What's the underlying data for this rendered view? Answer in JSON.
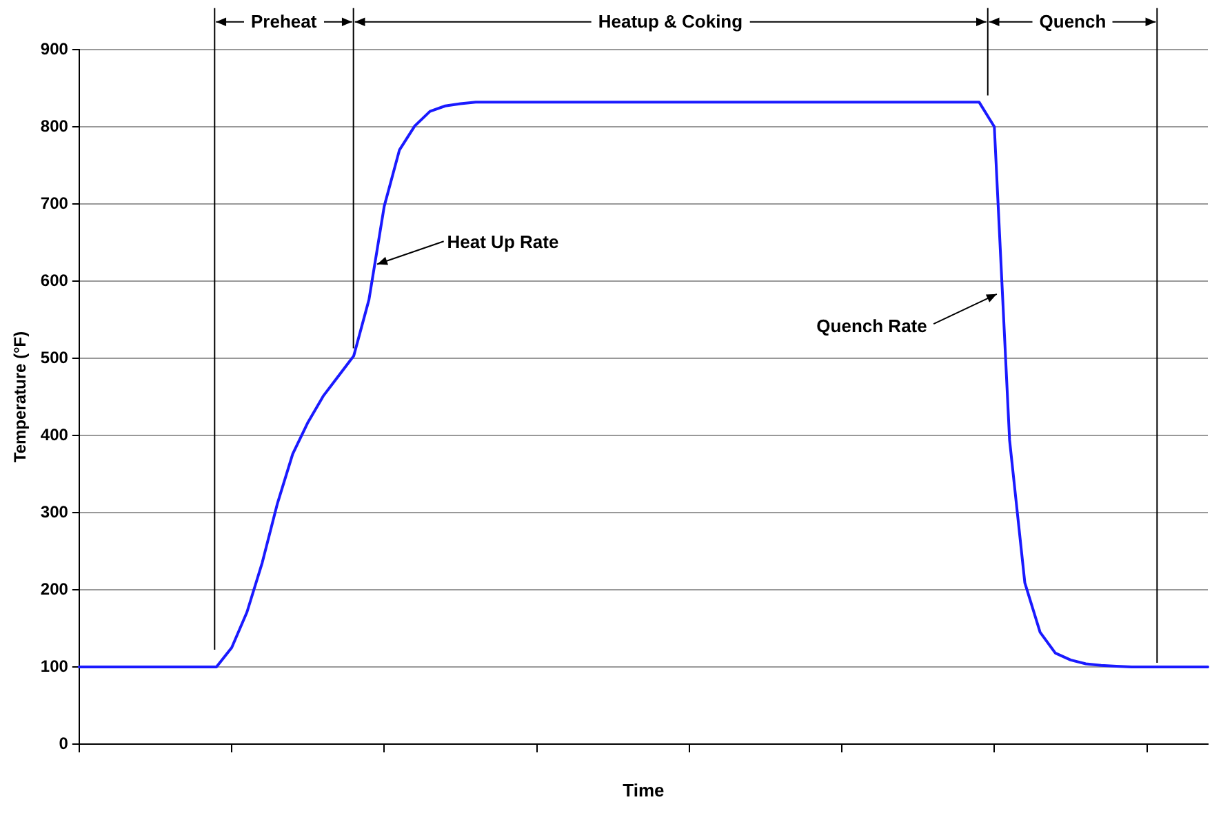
{
  "chart_data": {
    "type": "line",
    "xlabel": "Time",
    "ylabel": "Temperature (°F)",
    "categories": [
      null,
      null,
      null,
      null,
      null,
      null,
      null,
      null,
      null,
      null,
      null,
      null,
      null,
      null,
      null,
      null,
      null,
      null,
      null,
      null,
      null,
      null,
      null,
      null,
      null,
      null,
      null,
      null,
      null,
      null,
      null,
      null,
      null,
      null,
      null,
      null,
      null,
      null,
      null,
      null,
      null,
      null,
      null,
      null,
      null,
      null,
      null,
      null,
      null,
      null,
      null,
      null,
      null,
      null,
      null,
      null,
      null,
      null,
      null,
      null,
      null,
      null,
      null,
      null,
      null,
      null,
      null,
      null,
      null,
      null,
      null,
      null,
      null,
      null,
      null
    ],
    "series": [
      {
        "color": "#1a1aff",
        "values": [
          100,
          100,
          100,
          100,
          100,
          100,
          100,
          100,
          100,
          100,
          125,
          171,
          235,
          312,
          376,
          417,
          451,
          477,
          503,
          576,
          697,
          770,
          801,
          820,
          827,
          830,
          832,
          832,
          832,
          832,
          832,
          832,
          832,
          832,
          832,
          832,
          832,
          832,
          832,
          832,
          832,
          832,
          832,
          832,
          832,
          832,
          832,
          832,
          832,
          832,
          832,
          832,
          832,
          832,
          832,
          832,
          832,
          832,
          832,
          832,
          800,
          394,
          209,
          145,
          118,
          109,
          104,
          102,
          101,
          100,
          100,
          100,
          100,
          100,
          100
        ]
      }
    ],
    "ylim": [
      0,
      900
    ],
    "yticks": [
      0,
      100,
      200,
      300,
      400,
      500,
      600,
      700,
      800,
      900
    ],
    "grid": "y",
    "marker": "none",
    "line_style": "solid",
    "annotations": [
      "Preheat",
      "Heatup & Coking",
      "Quench",
      "Heat Up Rate",
      "Quench Rate"
    ]
  }
}
